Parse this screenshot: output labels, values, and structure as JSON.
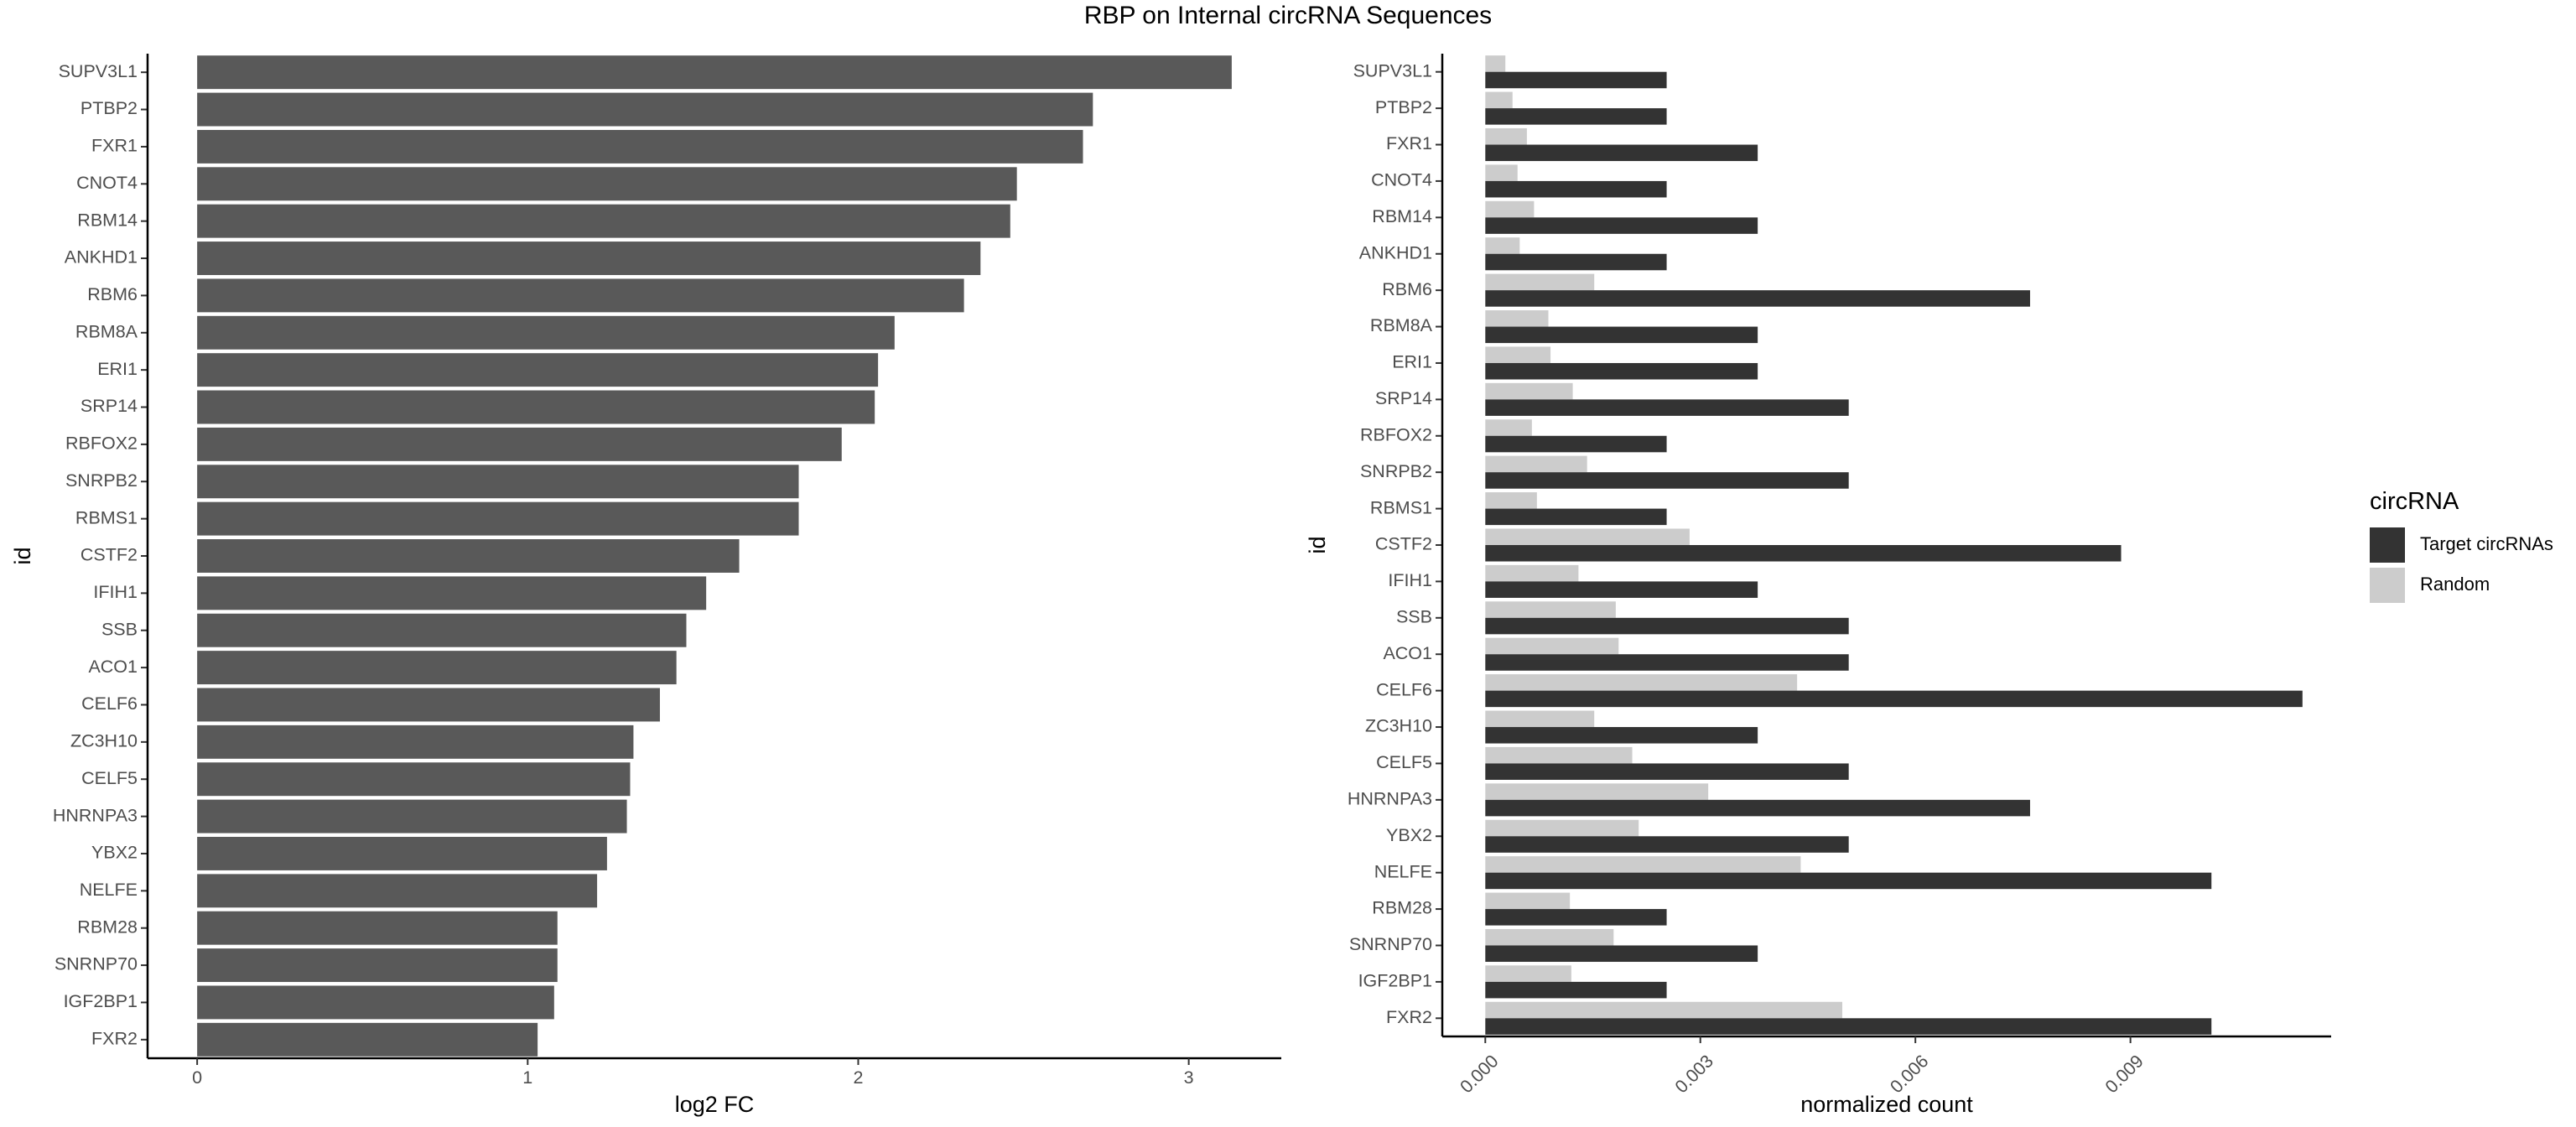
{
  "title": "RBP on Internal circRNA Sequences",
  "chart_data": [
    {
      "type": "bar",
      "orientation": "horizontal",
      "ylabel": "id",
      "xlabel": "log2 FC",
      "xlim": [
        -0.15,
        3.28
      ],
      "xticks": [
        0,
        1,
        2,
        3
      ],
      "grid": false,
      "bar_color": "#595959",
      "categories": [
        "SUPV3L1",
        "PTBP2",
        "FXR1",
        "CNOT4",
        "RBM14",
        "ANKHD1",
        "RBM6",
        "RBM8A",
        "ERI1",
        "SRP14",
        "RBFOX2",
        "SNRPB2",
        "RBMS1",
        "CSTF2",
        "IFIH1",
        "SSB",
        "ACO1",
        "CELF6",
        "ZC3H10",
        "CELF5",
        "HNRNPA3",
        "YBX2",
        "NELFE",
        "RBM28",
        "SNRNP70",
        "IGF2BP1",
        "FXR2"
      ],
      "values": [
        3.13,
        2.71,
        2.68,
        2.48,
        2.46,
        2.37,
        2.32,
        2.11,
        2.06,
        2.05,
        1.95,
        1.82,
        1.82,
        1.64,
        1.54,
        1.48,
        1.45,
        1.4,
        1.32,
        1.31,
        1.3,
        1.24,
        1.21,
        1.09,
        1.09,
        1.08,
        1.03
      ]
    },
    {
      "type": "bar",
      "orientation": "horizontal",
      "grouped": true,
      "ylabel": "id",
      "xlabel": "normalized count",
      "xlim": [
        -0.0006,
        0.0118
      ],
      "xticks": [
        0,
        0.003,
        0.006,
        0.009
      ],
      "xtick_labels": [
        "0.000",
        "0.003",
        "0.006",
        "0.009"
      ],
      "grid": false,
      "legend_title": "circRNA",
      "legend_position": "right",
      "categories": [
        "SUPV3L1",
        "PTBP2",
        "FXR1",
        "CNOT4",
        "RBM14",
        "ANKHD1",
        "RBM6",
        "RBM8A",
        "ERI1",
        "SRP14",
        "RBFOX2",
        "SNRPB2",
        "RBMS1",
        "CSTF2",
        "IFIH1",
        "SSB",
        "ACO1",
        "CELF6",
        "ZC3H10",
        "CELF5",
        "HNRNPA3",
        "YBX2",
        "NELFE",
        "RBM28",
        "SNRNP70",
        "IGF2BP1",
        "FXR2"
      ],
      "series": [
        {
          "name": "Target circRNAs",
          "color": "#333333",
          "values": [
            0.00253,
            0.00253,
            0.0038,
            0.00253,
            0.0038,
            0.00253,
            0.0076,
            0.0038,
            0.0038,
            0.00507,
            0.00253,
            0.00507,
            0.00253,
            0.00887,
            0.0038,
            0.00507,
            0.00507,
            0.0114,
            0.0038,
            0.00507,
            0.0076,
            0.00507,
            0.01013,
            0.00253,
            0.0038,
            0.00253,
            0.01013
          ]
        },
        {
          "name": "Random",
          "color": "#cccccc",
          "values": [
            0.00028,
            0.00038,
            0.00058,
            0.00045,
            0.00068,
            0.00048,
            0.00152,
            0.00088,
            0.00091,
            0.00122,
            0.00065,
            0.00142,
            0.00072,
            0.00285,
            0.0013,
            0.00182,
            0.00186,
            0.00435,
            0.00152,
            0.00205,
            0.00311,
            0.00214,
            0.0044,
            0.00118,
            0.00179,
            0.0012,
            0.00498
          ]
        }
      ]
    }
  ]
}
